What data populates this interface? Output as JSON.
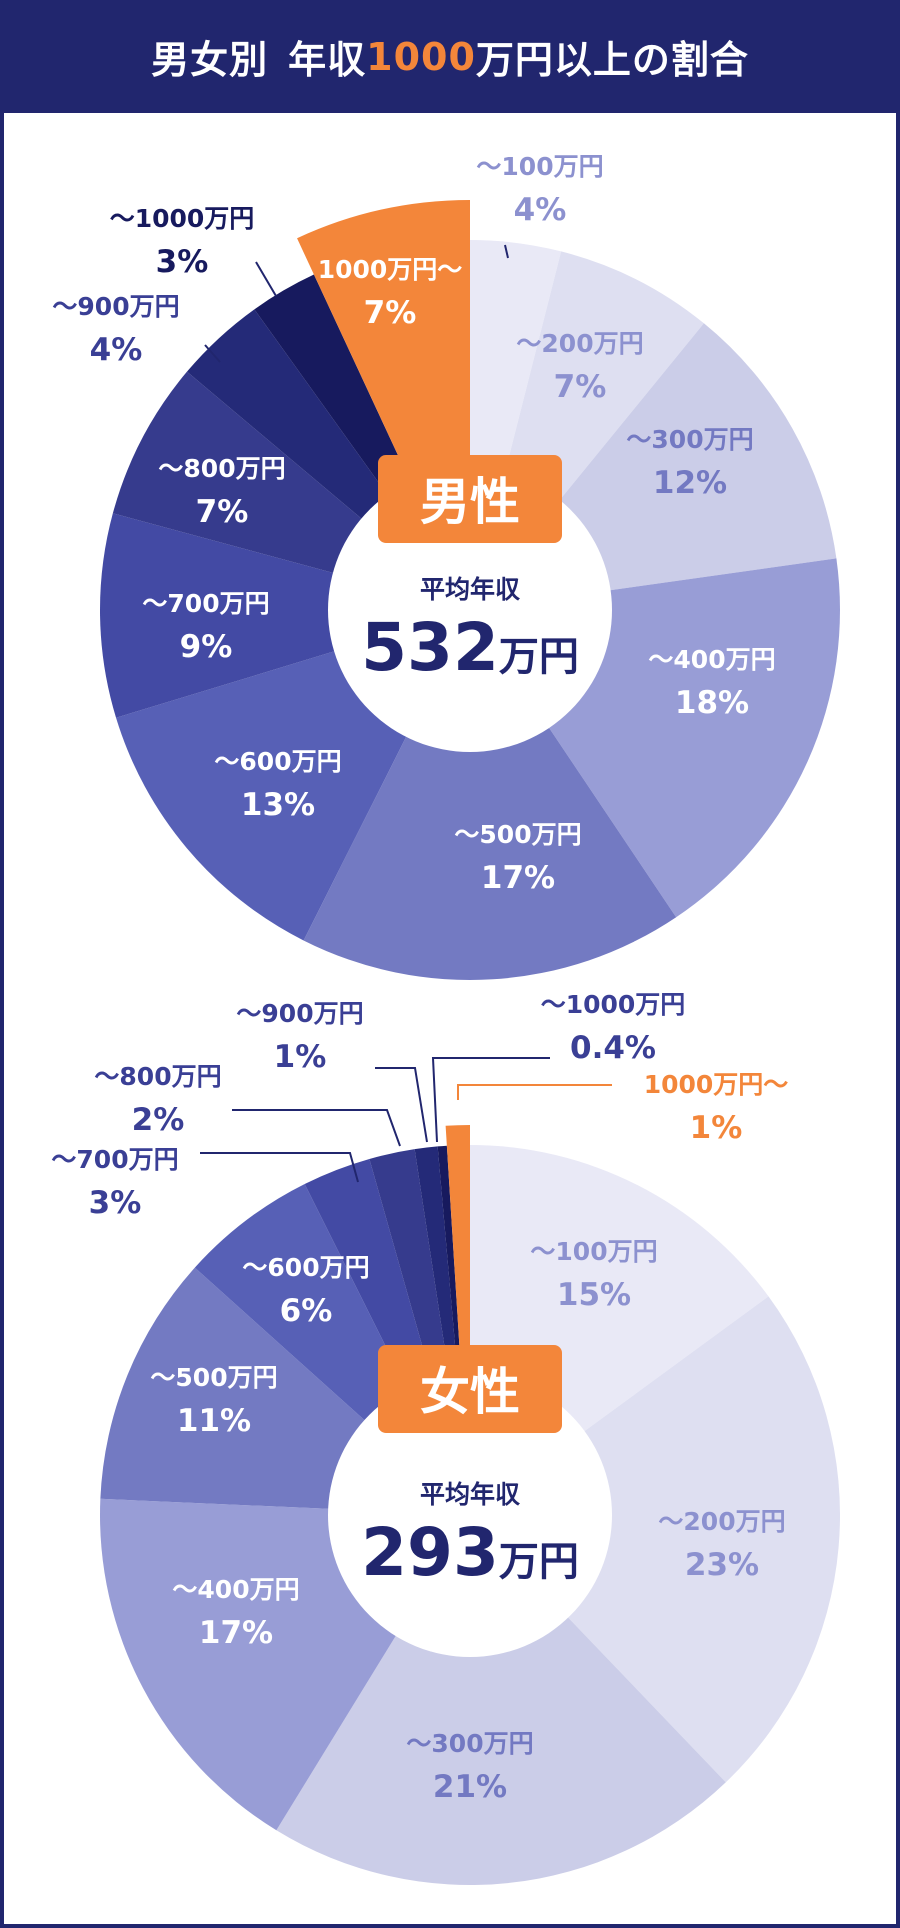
{
  "header": {
    "title_prefix": "男女別",
    "title_main_before": "年収",
    "title_highlight": "1000",
    "title_main_after": "万円以上の割合"
  },
  "colors": {
    "navy": "#21266e",
    "orange": "#f3863a",
    "slices": [
      "#e9e9f6",
      "#dedff1",
      "#cbcde8",
      "#989dd6",
      "#737ac2",
      "#5760b6",
      "#434aa4",
      "#363b8d",
      "#242a78",
      "#171a5e",
      "#f3863a"
    ]
  },
  "charts": [
    {
      "gender": "男性",
      "avg_label": "平均年収",
      "avg_value": "532",
      "avg_unit": "万円"
    },
    {
      "gender": "女性",
      "avg_label": "平均年収",
      "avg_value": "293",
      "avg_unit": "万円"
    }
  ],
  "chart_data": [
    {
      "type": "pie",
      "title": "男性 年収分布 (平均年収 532万円)",
      "categories": [
        "～100万円",
        "～200万円",
        "～300万円",
        "～400万円",
        "～500万円",
        "～600万円",
        "～700万円",
        "～800万円",
        "～900万円",
        "～1000万円",
        "1000万円～"
      ],
      "values": [
        4,
        7,
        12,
        18,
        17,
        13,
        9,
        7,
        4,
        3,
        7
      ],
      "labels": [
        "4%",
        "7%",
        "12%",
        "18%",
        "17%",
        "13%",
        "9%",
        "7%",
        "4%",
        "3%",
        "7%"
      ],
      "highlight": "1000万円～",
      "center_text": "平均年収 532万円"
    },
    {
      "type": "pie",
      "title": "女性 年収分布 (平均年収 293万円)",
      "categories": [
        "～100万円",
        "～200万円",
        "～300万円",
        "～400万円",
        "～500万円",
        "～600万円",
        "～700万円",
        "～800万円",
        "～900万円",
        "～1000万円",
        "1000万円～"
      ],
      "values": [
        15,
        23,
        21,
        17,
        11,
        6,
        3,
        2,
        1,
        0.4,
        1
      ],
      "labels": [
        "15%",
        "23%",
        "21%",
        "17%",
        "11%",
        "6%",
        "3%",
        "2%",
        "1%",
        "0.4%",
        "1%"
      ],
      "highlight": "1000万円～",
      "center_text": "平均年収 293万円"
    }
  ]
}
